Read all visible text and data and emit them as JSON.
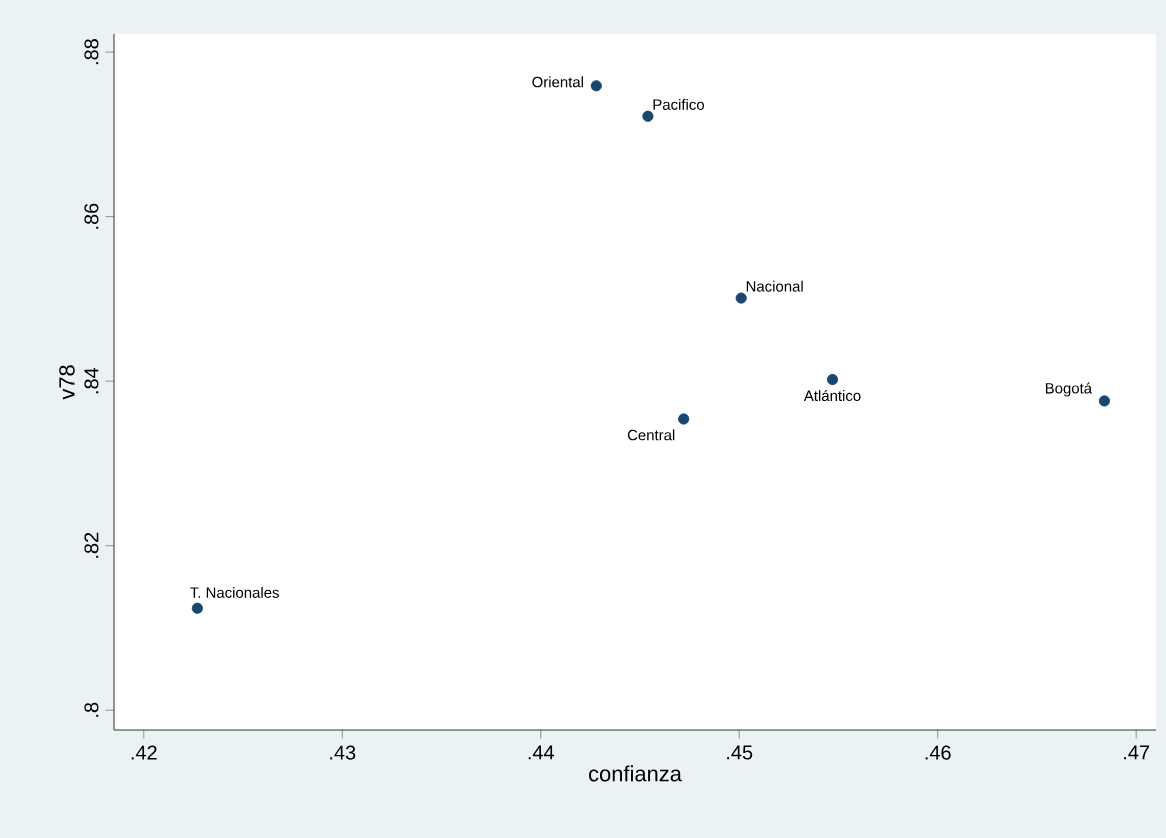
{
  "chart_data": {
    "type": "scatter",
    "xlabel": "confianza",
    "ylabel": "v78",
    "x": [
      0.4428,
      0.4454,
      0.4501,
      0.4547,
      0.4472,
      0.4684,
      0.4227
    ],
    "values": [
      0.8759,
      0.8722,
      0.8501,
      0.8402,
      0.8354,
      0.8376,
      0.8124
    ],
    "color": "#1a476f",
    "marker": "circle",
    "xlim": [
      0.4185,
      0.471
    ],
    "ylim": [
      0.7976,
      0.8822
    ],
    "xticks": [
      {
        "value": 0.42,
        "label": ".42"
      },
      {
        "value": 0.43,
        "label": ".43"
      },
      {
        "value": 0.44,
        "label": ".44"
      },
      {
        "value": 0.45,
        "label": ".45"
      },
      {
        "value": 0.46,
        "label": ".46"
      },
      {
        "value": 0.47,
        "label": ".47"
      }
    ],
    "yticks": [
      {
        "value": 0.8,
        "label": ".8"
      },
      {
        "value": 0.82,
        "label": ".82"
      },
      {
        "value": 0.84,
        "label": ".84"
      },
      {
        "value": 0.86,
        "label": ".86"
      },
      {
        "value": 0.88,
        "label": ".88"
      }
    ],
    "annotations": [
      {
        "text": "Oriental",
        "x": 0.4428,
        "y": 0.8759
      },
      {
        "text": "Pacifico",
        "x": 0.4454,
        "y": 0.8722
      },
      {
        "text": "Nacional",
        "x": 0.4501,
        "y": 0.8501
      },
      {
        "text": "Atlántico",
        "x": 0.4547,
        "y": 0.8402
      },
      {
        "text": "Central",
        "x": 0.4472,
        "y": 0.8354
      },
      {
        "text": "Bogotá",
        "x": 0.4684,
        "y": 0.8376
      },
      {
        "text": "T. Nacionales",
        "x": 0.4227,
        "y": 0.8124
      }
    ],
    "grid": false
  }
}
